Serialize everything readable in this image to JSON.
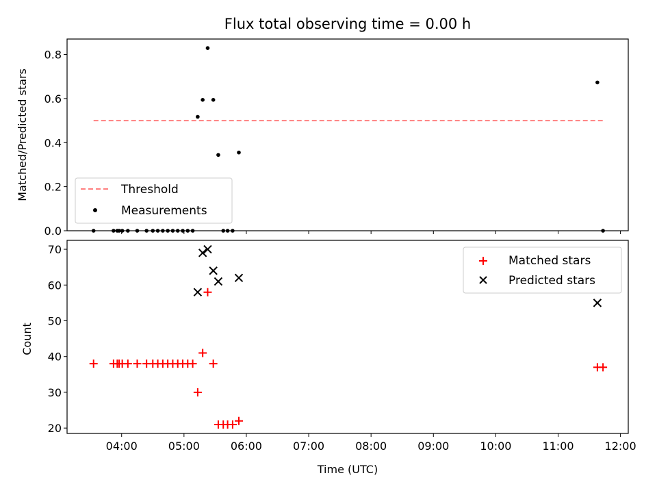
{
  "chart_data": {
    "type": "scatter",
    "title": "Flux total observing time = 0.00 h",
    "xlabel": "Time (UTC)",
    "x_tick_labels": [
      "04:00",
      "05:00",
      "06:00",
      "07:00",
      "08:00",
      "09:00",
      "10:00",
      "11:00",
      "12:00"
    ],
    "x_tick_hours": [
      4,
      5,
      6,
      7,
      8,
      9,
      10,
      11,
      12
    ],
    "xlim_hours": [
      3.125,
      12.125
    ],
    "grid": false,
    "panels": [
      {
        "ylabel": "Matched/Predicted stars",
        "ylim": [
          0,
          0.87
        ],
        "y_ticks": [
          0.0,
          0.2,
          0.4,
          0.6,
          0.8
        ],
        "y_tick_labels": [
          "0.0",
          "0.2",
          "0.4",
          "0.6",
          "0.8"
        ],
        "legend_position": "lower-left",
        "series": [
          {
            "name": "Threshold",
            "kind": "line",
            "style": "dashed",
            "color": "#ff7f7f",
            "x": [
              3.55,
              11.72
            ],
            "y": [
              0.5,
              0.5
            ]
          },
          {
            "name": "Measurements",
            "kind": "scatter",
            "marker": "dot",
            "color": "#000000",
            "x": [
              3.55,
              3.87,
              3.93,
              3.96,
              4.01,
              4.1,
              4.25,
              4.4,
              4.5,
              4.58,
              4.66,
              4.74,
              4.82,
              4.9,
              4.98,
              5.06,
              5.14,
              5.22,
              5.3,
              5.38,
              5.47,
              5.55,
              5.63,
              5.7,
              5.78,
              5.88,
              11.63,
              11.72
            ],
            "y": [
              0,
              0,
              0,
              0,
              0,
              0,
              0,
              0,
              0,
              0,
              0,
              0,
              0,
              0,
              0,
              0,
              0,
              0.517,
              0.594,
              0.829,
              0.594,
              0.344,
              0,
              0,
              0,
              0.355,
              0.673,
              0
            ]
          }
        ]
      },
      {
        "ylabel": "Count",
        "ylim": [
          18.5,
          72.5
        ],
        "y_ticks": [
          20,
          30,
          40,
          50,
          60,
          70
        ],
        "y_tick_labels": [
          "20",
          "30",
          "40",
          "50",
          "60",
          "70"
        ],
        "legend_position": "upper-right",
        "series": [
          {
            "name": "Matched stars",
            "kind": "scatter",
            "marker": "plus",
            "color": "#ff0000",
            "x": [
              3.55,
              3.87,
              3.93,
              3.96,
              4.01,
              4.1,
              4.25,
              4.4,
              4.5,
              4.58,
              4.66,
              4.74,
              4.82,
              4.9,
              4.98,
              5.06,
              5.14,
              5.22,
              5.3,
              5.38,
              5.47,
              5.55,
              5.63,
              5.7,
              5.78,
              5.88,
              11.63,
              11.72
            ],
            "y": [
              38,
              38,
              38,
              38,
              38,
              38,
              38,
              38,
              38,
              38,
              38,
              38,
              38,
              38,
              38,
              38,
              38,
              30,
              41,
              58,
              38,
              21,
              21,
              21,
              21,
              22,
              37,
              37
            ]
          },
          {
            "name": "Predicted stars",
            "kind": "scatter",
            "marker": "x",
            "color": "#000000",
            "x": [
              5.22,
              5.3,
              5.38,
              5.47,
              5.55,
              5.88,
              11.63
            ],
            "y": [
              58,
              69,
              70,
              64,
              61,
              62,
              55
            ]
          }
        ]
      }
    ]
  }
}
